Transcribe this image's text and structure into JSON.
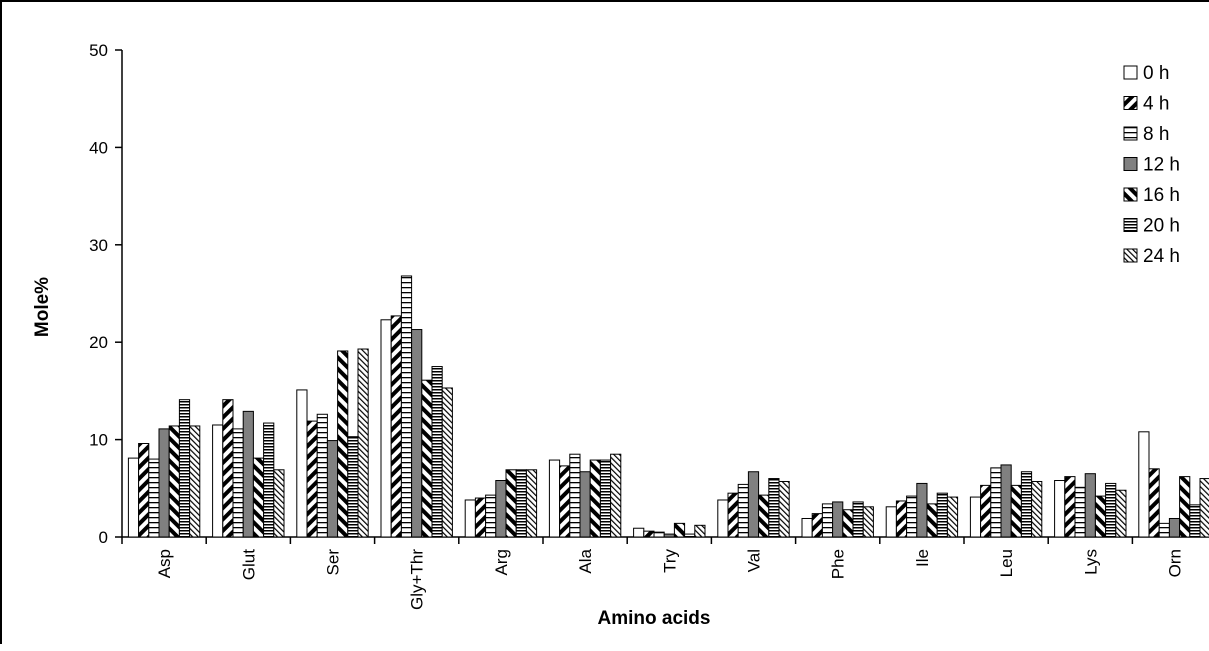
{
  "chart_data": {
    "type": "bar",
    "title": "",
    "xlabel": "Amino acids",
    "ylabel": "Mole%",
    "ylim": [
      0,
      50
    ],
    "yticks": [
      "0",
      "10",
      "20",
      "30",
      "40",
      "50"
    ],
    "grid": false,
    "legend_position": "top-right",
    "categories": [
      "Asp",
      "Glut",
      "Ser",
      "Gly+Thr",
      "Arg",
      "Ala",
      "Try",
      "Val",
      "Phe",
      "Ile",
      "Leu",
      "Lys",
      "Orn"
    ],
    "series": [
      {
        "name": "0 h",
        "pattern": "blank",
        "values": [
          8.1,
          11.5,
          15.1,
          22.3,
          3.8,
          7.9,
          0.9,
          3.8,
          1.9,
          3.1,
          4.1,
          5.8,
          10.8
        ]
      },
      {
        "name": "4 h",
        "pattern": "diag-heavy",
        "values": [
          9.6,
          14.1,
          11.9,
          22.7,
          4.0,
          7.3,
          0.6,
          4.5,
          2.4,
          3.7,
          5.3,
          6.2,
          7.0
        ]
      },
      {
        "name": "8 h",
        "pattern": "horizontal",
        "values": [
          8.0,
          11.1,
          12.6,
          26.8,
          4.3,
          8.5,
          0.5,
          5.4,
          3.4,
          4.2,
          7.1,
          5.1,
          1.4
        ]
      },
      {
        "name": "12 h",
        "pattern": "solid-gray",
        "values": [
          11.1,
          12.9,
          9.9,
          21.3,
          5.8,
          6.7,
          0.3,
          6.7,
          3.6,
          5.5,
          7.4,
          6.5,
          1.9
        ]
      },
      {
        "name": "16 h",
        "pattern": "diag-heavy-alt",
        "values": [
          11.4,
          8.1,
          19.1,
          16.1,
          6.9,
          7.9,
          1.4,
          4.3,
          2.8,
          3.4,
          5.3,
          4.2,
          6.2
        ]
      },
      {
        "name": "20 h",
        "pattern": "horizontal-dense",
        "values": [
          14.1,
          11.7,
          10.3,
          17.5,
          6.9,
          7.9,
          0.3,
          6.0,
          3.6,
          4.5,
          6.7,
          5.5,
          3.3
        ]
      },
      {
        "name": "24 h",
        "pattern": "diag-light",
        "values": [
          11.4,
          6.9,
          19.3,
          15.3,
          6.9,
          8.5,
          1.2,
          5.7,
          3.1,
          4.1,
          5.7,
          4.8,
          6.0
        ]
      }
    ]
  }
}
